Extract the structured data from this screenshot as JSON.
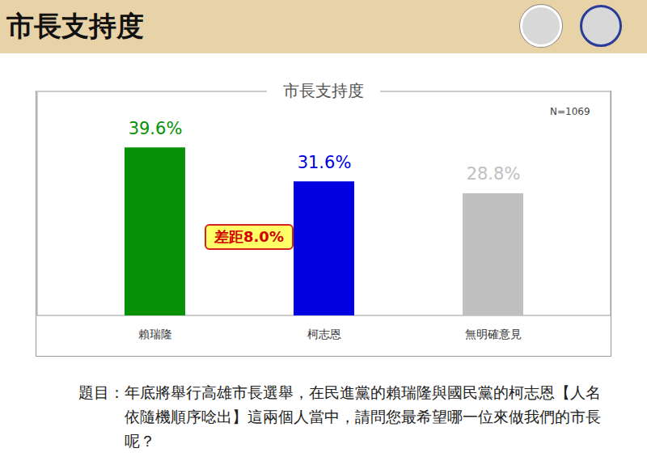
{
  "header": {
    "title": "市長支持度"
  },
  "chart_data": {
    "type": "bar",
    "title": "市長支持度",
    "categories": [
      "賴瑞隆",
      "柯志恩",
      "無明確意見"
    ],
    "values": [
      39.6,
      31.6,
      28.8
    ],
    "value_labels": [
      "39.6%",
      "31.6%",
      "28.8%"
    ],
    "colors": [
      "#079107",
      "#0000e0",
      "#c0c0c0"
    ],
    "ylim": [
      0,
      53
    ],
    "yticks": [],
    "grid": false,
    "data_labels": true,
    "tick_labels": "x",
    "annotations": [
      "N=1069",
      "差距8.0%"
    ],
    "caption": "題目：年底將舉行高雄市長選舉，在民進黨的賴瑞隆與國民黨的柯志恩【人名依隨機順序唸出】這兩個人當中，請問您最希望哪一位來做我們的市長呢？"
  }
}
